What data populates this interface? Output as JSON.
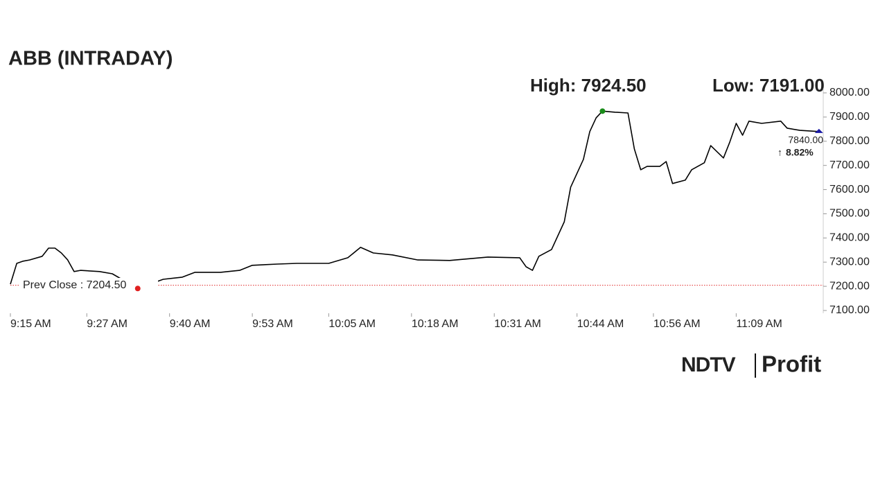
{
  "chart_data": {
    "type": "line",
    "title": "ABB (INTRADAY)",
    "high": {
      "value": 7924.5,
      "label": "High: 7924.50"
    },
    "low": {
      "value": 7191,
      "label": "Low: 7191.00"
    },
    "prev_close": {
      "value": 7204.5,
      "label": "Prev Close : 7204.50"
    },
    "last": {
      "value": 7840,
      "label": "7840.00"
    },
    "change": "8.82%",
    "x": [
      "9:15 AM",
      "9:16 AM",
      "9:17 AM",
      "9:18 AM",
      "9:20 AM",
      "9:21 AM",
      "9:22 AM",
      "9:23 AM",
      "9:24 AM",
      "9:25 AM",
      "9:26 AM",
      "9:29 AM",
      "9:31 AM",
      "9:35 AM",
      "9:39 AM",
      "9:42 AM",
      "9:44 AM",
      "9:48 AM",
      "9:51 AM",
      "9:53 AM",
      "9:57 AM",
      "10:00 AM",
      "10:05 AM",
      "10:08 AM",
      "10:10 AM",
      "10:12 AM",
      "10:15 AM",
      "10:19 AM",
      "10:24 AM",
      "10:30 AM",
      "10:35 AM",
      "10:36 AM",
      "10:37 AM",
      "10:38 AM",
      "10:40 AM",
      "10:42 AM",
      "10:43 AM",
      "10:45 AM",
      "10:46 AM",
      "10:47 AM",
      "10:48 AM",
      "10:50 AM",
      "10:52 AM",
      "10:53 AM",
      "10:54 AM",
      "10:55 AM",
      "10:57 AM",
      "10:58 AM",
      "10:59 AM",
      "11:01 AM",
      "11:02 AM",
      "11:04 AM",
      "11:05 AM",
      "11:07 AM",
      "11:08 AM",
      "11:09 AM",
      "11:10 AM",
      "11:11 AM",
      "11:13 AM",
      "11:16 AM",
      "11:17 AM",
      "11:19 AM",
      "11:22 AM"
    ],
    "series": [
      {
        "color": "#000000",
        "values": [
          7209,
          7295,
          7304,
          7309,
          7324,
          7358,
          7358,
          7338,
          7309,
          7261,
          7266,
          7261,
          7252,
          7191,
          7229,
          7238,
          7258,
          7258,
          7266,
          7287,
          7292,
          7295,
          7295,
          7318,
          7361,
          7338,
          7330,
          7309,
          7307,
          7321,
          7318,
          7281,
          7266,
          7324,
          7352,
          7467,
          7610,
          7725,
          7840,
          7897,
          7924.5,
          7920,
          7917,
          7768,
          7682,
          7696,
          7696,
          7716,
          7625,
          7639,
          7682,
          7711,
          7782,
          7731,
          7797,
          7874,
          7825,
          7883,
          7874,
          7883,
          7854,
          7845,
          7840
        ]
      }
    ],
    "xlim": [
      "9:15 AM",
      "11:23 AM"
    ],
    "xticks": [
      "9:15 AM",
      "9:27 AM",
      "9:40 AM",
      "9:53 AM",
      "10:05 AM",
      "10:18 AM",
      "10:31 AM",
      "10:44 AM",
      "10:56 AM",
      "11:09 AM"
    ],
    "ylim": [
      7100,
      8000
    ],
    "yticks": [
      {
        "value": 7100,
        "label": "7100.00"
      },
      {
        "value": 7200,
        "label": "7200.00"
      },
      {
        "value": 7300,
        "label": "7300.00"
      },
      {
        "value": 7400,
        "label": "7400.00"
      },
      {
        "value": 7500,
        "label": "7500.00"
      },
      {
        "value": 7600,
        "label": "7600.00"
      },
      {
        "value": 7700,
        "label": "7700.00"
      },
      {
        "value": 7800,
        "label": "7800.00"
      },
      {
        "value": 7900,
        "label": "7900.00"
      },
      {
        "value": 8000,
        "label": "8000.00"
      }
    ],
    "high_color": "#1a8c1a",
    "low_color": "#e02020",
    "last_color": "#1a1aa6",
    "prev_close_color": "#e03030",
    "change_color": "#1a8c1a",
    "brand": {
      "left": "NDTV",
      "right": "Profit"
    }
  }
}
